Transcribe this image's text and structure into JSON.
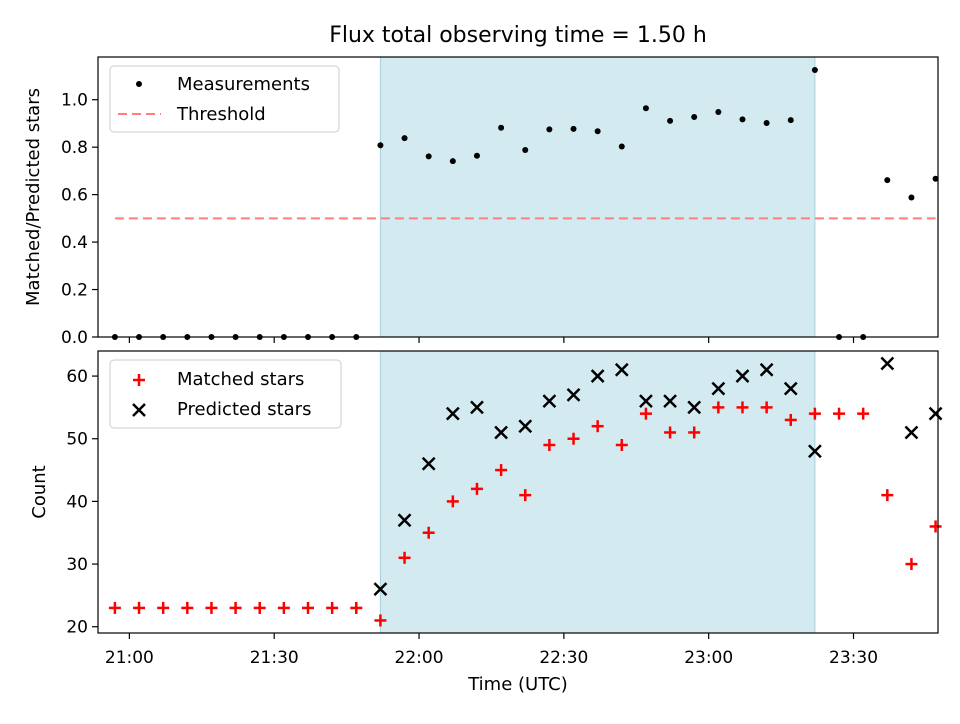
{
  "chart_data": {
    "title": "Flux total observing time = 1.50 h",
    "xlabel": "Time (UTC)",
    "x_ticks": [
      "21:00",
      "21:30",
      "22:00",
      "22:30",
      "23:00",
      "23:30"
    ],
    "x_unit": "minutes since 21:00 UTC",
    "shaded_interval": [
      "21:52",
      "23:22"
    ],
    "shade_color": "#d4eaf1",
    "times": [
      "20:57",
      "21:02",
      "21:07",
      "21:12",
      "21:17",
      "21:22",
      "21:27",
      "21:32",
      "21:37",
      "21:42",
      "21:47",
      "21:52",
      "21:57",
      "22:02",
      "22:07",
      "22:12",
      "22:17",
      "22:22",
      "22:27",
      "22:32",
      "22:37",
      "22:42",
      "22:47",
      "22:52",
      "22:57",
      "23:02",
      "23:07",
      "23:12",
      "23:17",
      "23:22",
      "23:27",
      "23:32",
      "23:37",
      "23:42",
      "23:47"
    ],
    "top": {
      "type": "scatter",
      "ylabel": "Matched/Predicted stars",
      "ylim": [
        0,
        1.18
      ],
      "y_ticks": [
        "0.0",
        "0.2",
        "0.4",
        "0.6",
        "0.8",
        "1.0"
      ],
      "series": [
        {
          "name": "Measurements",
          "color": "#000000",
          "values": [
            0,
            0,
            0,
            0,
            0,
            0,
            0,
            0,
            0,
            0,
            0,
            0.808,
            0.838,
            0.761,
            0.741,
            0.764,
            0.882,
            0.788,
            0.875,
            0.877,
            0.867,
            0.803,
            0.964,
            0.911,
            0.927,
            0.948,
            0.917,
            0.902,
            0.914,
            1.125,
            0,
            0,
            0.661,
            0.588,
            0.667
          ]
        },
        {
          "name": "Threshold",
          "color": "#ff7f7f",
          "style": "dashed",
          "value": 0.5,
          "x_range": [
            "20:57",
            "23:47"
          ]
        }
      ],
      "legend": "upper-left"
    },
    "bottom": {
      "type": "scatter",
      "ylabel": "Count",
      "ylim": [
        19,
        64
      ],
      "y_ticks": [
        "20",
        "30",
        "40",
        "50",
        "60"
      ],
      "series": [
        {
          "name": "Matched stars",
          "color": "#ff0000",
          "marker": "plus",
          "values": [
            23,
            23,
            23,
            23,
            23,
            23,
            23,
            23,
            23,
            23,
            23,
            21,
            31,
            35,
            40,
            42,
            45,
            41,
            49,
            50,
            52,
            49,
            54,
            51,
            51,
            55,
            55,
            55,
            53,
            54,
            54,
            54,
            41,
            30,
            36
          ]
        },
        {
          "name": "Predicted stars",
          "color": "#000000",
          "marker": "x",
          "values": [
            null,
            null,
            null,
            null,
            null,
            null,
            null,
            null,
            null,
            null,
            null,
            26,
            37,
            46,
            54,
            55,
            51,
            52,
            56,
            57,
            60,
            61,
            56,
            56,
            55,
            58,
            60,
            61,
            58,
            48,
            null,
            null,
            62,
            51,
            54
          ]
        }
      ],
      "legend": "upper-left"
    }
  }
}
